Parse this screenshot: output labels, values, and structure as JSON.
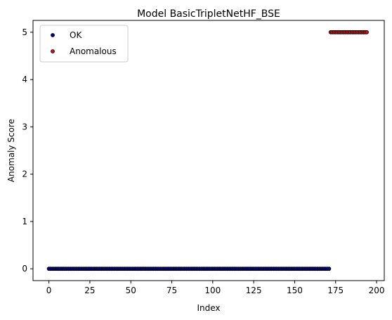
{
  "chart_data": {
    "type": "scatter",
    "title": "Model BasicTripletNetHF_BSE",
    "xlabel": "Index",
    "ylabel": "Anomaly Score",
    "xlim": [
      -9.7,
      204.7
    ],
    "ylim": [
      -0.25,
      5.25
    ],
    "xticks": [
      0,
      25,
      50,
      75,
      100,
      125,
      150,
      175,
      200
    ],
    "yticks": [
      0,
      1,
      2,
      3,
      4,
      5
    ],
    "grid": false,
    "legend_position": "top-left",
    "series": [
      {
        "name": "OK",
        "color": "#00008b",
        "x_range": [
          0,
          171
        ],
        "y": 0
      },
      {
        "name": "Anomalous",
        "color": "#cc1111",
        "x_range": [
          172,
          194
        ],
        "y": 5
      }
    ]
  }
}
